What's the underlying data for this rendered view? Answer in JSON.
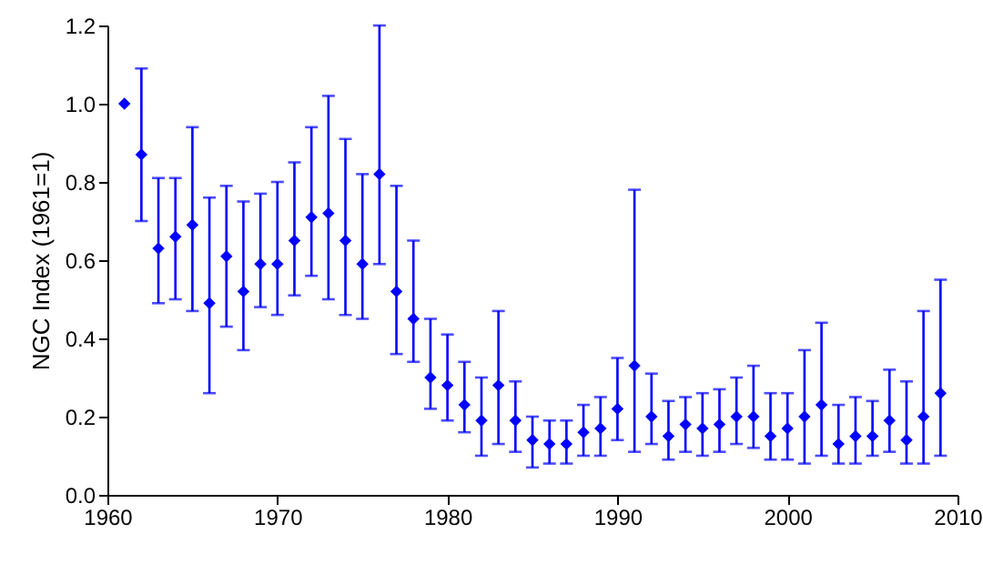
{
  "chart_data": {
    "type": "scatter",
    "ylabel": "NGC Index (1961=1)",
    "x": [
      1961,
      1962,
      1963,
      1964,
      1965,
      1966,
      1967,
      1968,
      1969,
      1970,
      1971,
      1972,
      1973,
      1974,
      1975,
      1976,
      1977,
      1978,
      1979,
      1980,
      1981,
      1982,
      1983,
      1984,
      1985,
      1986,
      1987,
      1988,
      1989,
      1990,
      1991,
      1992,
      1993,
      1994,
      1995,
      1996,
      1997,
      1998,
      1999,
      2000,
      2001,
      2002,
      2003,
      2004,
      2005,
      2006,
      2007,
      2008,
      2009
    ],
    "series": [
      {
        "color": "#0000ff",
        "values": [
          1.0,
          0.87,
          0.63,
          0.66,
          0.69,
          0.49,
          0.61,
          0.52,
          0.59,
          0.59,
          0.65,
          0.71,
          0.72,
          0.65,
          0.59,
          0.82,
          0.52,
          0.45,
          0.3,
          0.28,
          0.23,
          0.19,
          0.28,
          0.19,
          0.14,
          0.13,
          0.13,
          0.16,
          0.17,
          0.22,
          0.33,
          0.2,
          0.15,
          0.18,
          0.17,
          0.18,
          0.2,
          0.2,
          0.15,
          0.17,
          0.2,
          0.23,
          0.13,
          0.15,
          0.15,
          0.19,
          0.14,
          0.2,
          0.26
        ],
        "errors": [
          null,
          [
            0.7,
            1.09
          ],
          [
            0.49,
            0.81
          ],
          [
            0.5,
            0.81
          ],
          [
            0.47,
            0.94
          ],
          [
            0.26,
            0.76
          ],
          [
            0.43,
            0.79
          ],
          [
            0.37,
            0.75
          ],
          [
            0.48,
            0.77
          ],
          [
            0.46,
            0.8
          ],
          [
            0.51,
            0.85
          ],
          [
            0.56,
            0.94
          ],
          [
            0.5,
            1.02
          ],
          [
            0.46,
            0.91
          ],
          [
            0.45,
            0.82
          ],
          [
            0.59,
            1.2
          ],
          [
            0.36,
            0.79
          ],
          [
            0.34,
            0.65
          ],
          [
            0.22,
            0.45
          ],
          [
            0.19,
            0.41
          ],
          [
            0.16,
            0.34
          ],
          [
            0.1,
            0.3
          ],
          [
            0.13,
            0.47
          ],
          [
            0.11,
            0.29
          ],
          [
            0.07,
            0.2
          ],
          [
            0.08,
            0.19
          ],
          [
            0.08,
            0.19
          ],
          [
            0.1,
            0.23
          ],
          [
            0.1,
            0.25
          ],
          [
            0.14,
            0.35
          ],
          [
            0.11,
            0.78
          ],
          [
            0.13,
            0.31
          ],
          [
            0.09,
            0.24
          ],
          [
            0.11,
            0.25
          ],
          [
            0.1,
            0.26
          ],
          [
            0.11,
            0.27
          ],
          [
            0.13,
            0.3
          ],
          [
            0.12,
            0.33
          ],
          [
            0.09,
            0.26
          ],
          [
            0.09,
            0.26
          ],
          [
            0.08,
            0.37
          ],
          [
            0.1,
            0.44
          ],
          [
            0.08,
            0.23
          ],
          [
            0.08,
            0.25
          ],
          [
            0.1,
            0.24
          ],
          [
            0.11,
            0.32
          ],
          [
            0.08,
            0.29
          ],
          [
            0.08,
            0.47
          ],
          [
            0.1,
            0.55
          ]
        ]
      }
    ],
    "xlim": [
      1960,
      2010
    ],
    "xticks": [
      1960,
      1970,
      1980,
      1990,
      2000,
      2010
    ],
    "ylim": [
      0,
      1.2
    ],
    "yticks": [
      {
        "value": 0,
        "label": "0.0"
      },
      {
        "value": 0.2,
        "label": "0.2"
      },
      {
        "value": 0.4,
        "label": "0.4"
      },
      {
        "value": 0.6,
        "label": "0.6"
      },
      {
        "value": 0.8,
        "label": "0.8"
      },
      {
        "value": 1.0,
        "label": "1.0"
      },
      {
        "value": 1.2,
        "label": "1.2"
      }
    ],
    "grid": false,
    "marker": "diamond"
  }
}
